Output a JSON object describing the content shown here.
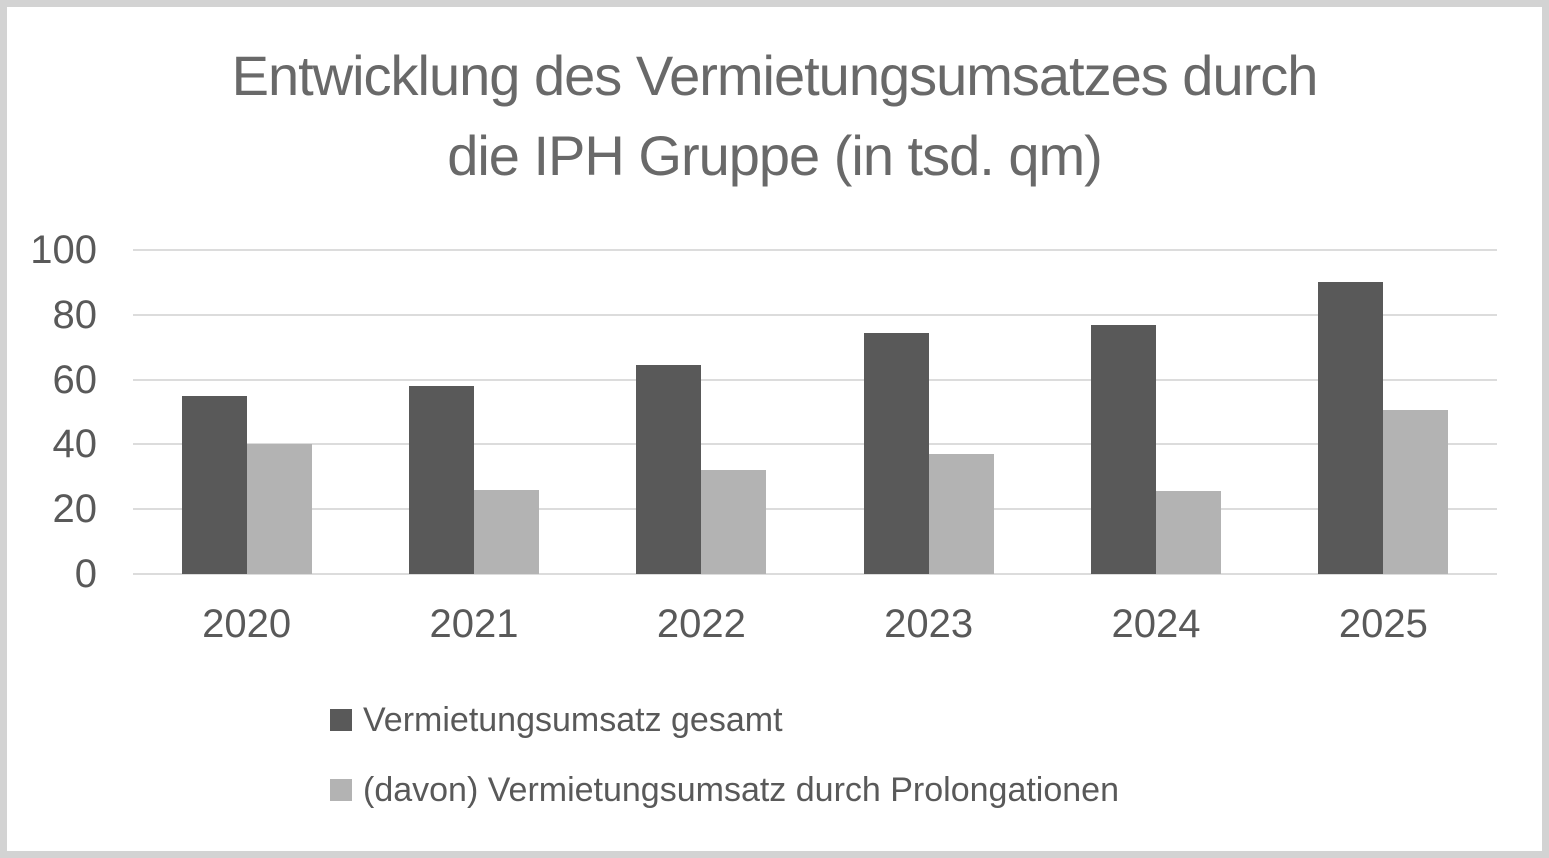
{
  "frame": {
    "border_color": "#d3d3d3",
    "background_color": "#ffffff"
  },
  "chart_data": {
    "type": "bar",
    "title": "Entwicklung des Vermietungsumsatzes durch die IPH Gruppe (in tsd. qm)",
    "title_lines": [
      "Entwicklung des Vermietungsumsatzes durch",
      "die IPH Gruppe (in tsd. qm)"
    ],
    "categories": [
      "2020",
      "2021",
      "2022",
      "2023",
      "2024",
      "2025"
    ],
    "series": [
      {
        "name": "Vermietungsumsatz gesamt",
        "color": "#595959",
        "values": [
          55,
          58,
          64.5,
          74.5,
          77,
          90
        ]
      },
      {
        "name": "(davon) Vermietungsumsatz durch Prolongationen",
        "color": "#b3b3b3",
        "values": [
          40,
          26,
          32,
          37,
          25.5,
          50.5
        ]
      }
    ],
    "xlabel": "",
    "ylabel": "",
    "ylim": [
      0,
      100
    ],
    "yticks": [
      100,
      80,
      60,
      40,
      20,
      0
    ],
    "grid": true,
    "legend_position": "bottom-left",
    "gridline_color": "#dcdcdc",
    "axis_text_color": "#595959",
    "title_color": "#696969"
  }
}
